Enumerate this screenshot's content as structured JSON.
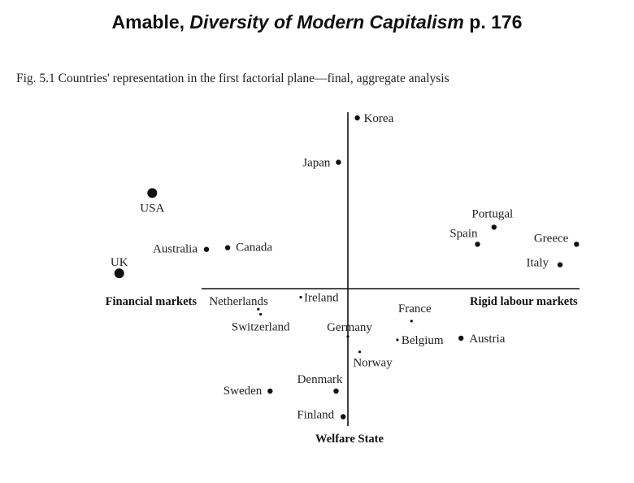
{
  "header": {
    "author": "Amable,",
    "book_title": "Diversity of Modern Capitalism",
    "page": "p. 176"
  },
  "caption": "Fig. 5.1 Countries' representation in the first factorial plane—final, aggregate analysis",
  "chart_data": {
    "type": "scatter",
    "title": "",
    "axis_labels": {
      "left": "Financial markets",
      "right": "Rigid labour markets",
      "bottom": "Welfare State"
    },
    "grid": false,
    "legend": "none",
    "xlim": [
      -1.0,
      1.0
    ],
    "ylim": [
      -1.0,
      1.0
    ],
    "points": [
      {
        "label": "Korea",
        "x": 0.04,
        "y": 1.0,
        "size": "medium"
      },
      {
        "label": "Japan",
        "x": -0.04,
        "y": 0.74,
        "size": "medium"
      },
      {
        "label": "USA",
        "x": -0.83,
        "y": 0.56,
        "size": "large"
      },
      {
        "label": "Portugal",
        "x": 0.62,
        "y": 0.36,
        "size": "medium"
      },
      {
        "label": "Spain",
        "x": 0.55,
        "y": 0.26,
        "size": "medium"
      },
      {
        "label": "Greece",
        "x": 0.97,
        "y": 0.26,
        "size": "medium"
      },
      {
        "label": "Italy",
        "x": 0.9,
        "y": 0.14,
        "size": "medium"
      },
      {
        "label": "Australia",
        "x": -0.6,
        "y": 0.23,
        "size": "medium"
      },
      {
        "label": "Canada",
        "x": -0.51,
        "y": 0.24,
        "size": "medium"
      },
      {
        "label": "UK",
        "x": -0.97,
        "y": 0.09,
        "size": "large"
      },
      {
        "label": "Ireland",
        "x": -0.2,
        "y": -0.05,
        "size": "tiny"
      },
      {
        "label": "Netherlands",
        "x": -0.38,
        "y": -0.12,
        "size": "tiny"
      },
      {
        "label": "Switzerland",
        "x": -0.37,
        "y": -0.15,
        "size": "tiny"
      },
      {
        "label": "France",
        "x": 0.27,
        "y": -0.19,
        "size": "tiny"
      },
      {
        "label": "Germany",
        "x": 0.0,
        "y": -0.28,
        "size": "tiny"
      },
      {
        "label": "Belgium",
        "x": 0.21,
        "y": -0.3,
        "size": "tiny"
      },
      {
        "label": "Austria",
        "x": 0.48,
        "y": -0.29,
        "size": "medium"
      },
      {
        "label": "Norway",
        "x": 0.05,
        "y": -0.37,
        "size": "tiny"
      },
      {
        "label": "Denmark",
        "x": -0.05,
        "y": -0.6,
        "size": "medium"
      },
      {
        "label": "Sweden",
        "x": -0.33,
        "y": -0.6,
        "size": "medium"
      },
      {
        "label": "Finland",
        "x": -0.02,
        "y": -0.75,
        "size": "medium"
      }
    ]
  }
}
